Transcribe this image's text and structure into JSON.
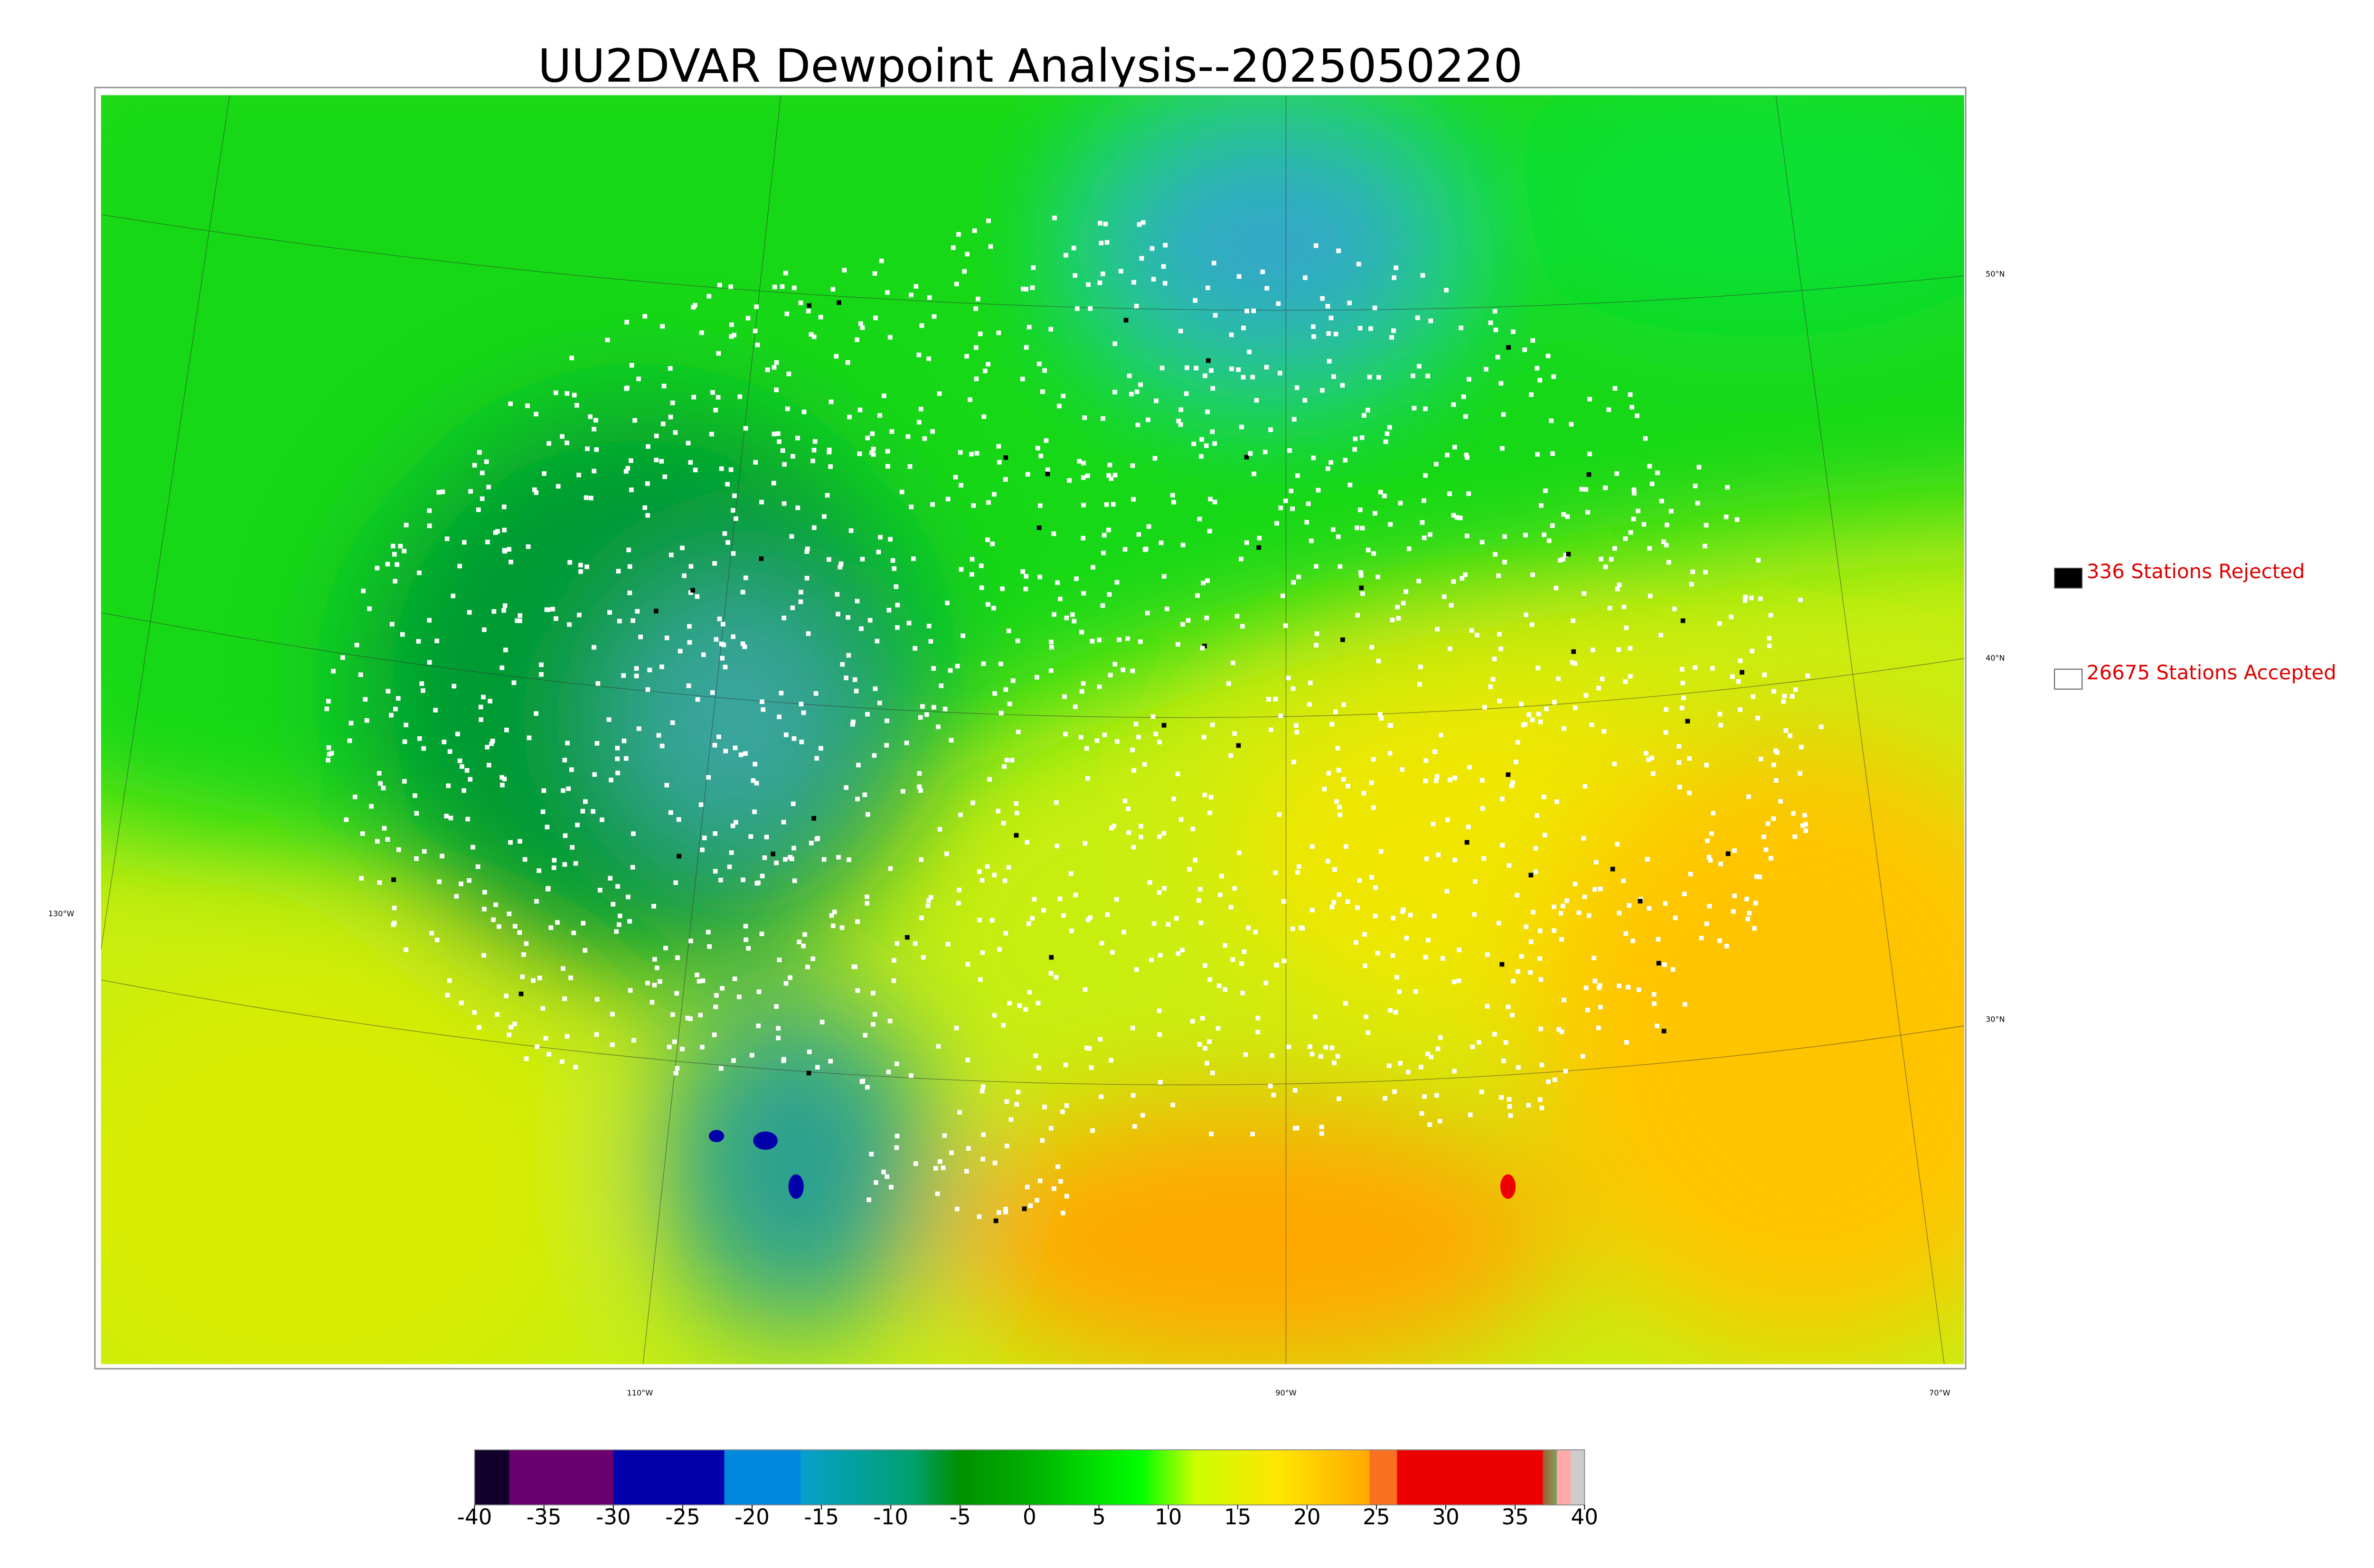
{
  "header": {
    "title": "UU2DVAR Dewpoint Analysis--2025050220"
  },
  "graticule": {
    "lon_labels": [
      "130°W",
      "110°W",
      "90°W",
      "70°W"
    ],
    "lat_labels": [
      "50°N",
      "40°N",
      "30°N"
    ]
  },
  "legend": [
    {
      "label": "336 Stations Rejected",
      "color": "#000000"
    },
    {
      "label": "26675 Stations Accepted",
      "color": "#ffffff"
    }
  ],
  "colorbar": {
    "ticks": [
      -40,
      -35,
      -30,
      -25,
      -20,
      -15,
      -10,
      -5,
      0,
      5,
      10,
      15,
      20,
      25,
      30,
      35,
      40
    ],
    "stops": [
      {
        "value": -40,
        "color": "#12002a"
      },
      {
        "value": -37.5,
        "color": "#12002a"
      },
      {
        "value": -37.5,
        "color": "#6a006f"
      },
      {
        "value": -30,
        "color": "#6a006f"
      },
      {
        "value": -30,
        "color": "#0000aa"
      },
      {
        "value": -22,
        "color": "#0000aa"
      },
      {
        "value": -22,
        "color": "#0088dd"
      },
      {
        "value": -16.5,
        "color": "#0088dd"
      },
      {
        "value": -16.5,
        "color": "#08a0cc"
      },
      {
        "value": -8.5,
        "color": "#00a070"
      },
      {
        "value": -5,
        "color": "#009000"
      },
      {
        "value": 0,
        "color": "#00b000"
      },
      {
        "value": 8,
        "color": "#00ff00"
      },
      {
        "value": 12,
        "color": "#ccff00"
      },
      {
        "value": 18,
        "color": "#ffe600"
      },
      {
        "value": 24.5,
        "color": "#ffa800"
      },
      {
        "value": 24.5,
        "color": "#f87020"
      },
      {
        "value": 26.5,
        "color": "#f87020"
      },
      {
        "value": 26.5,
        "color": "#ee0000"
      },
      {
        "value": 37,
        "color": "#ee0000"
      },
      {
        "value": 37,
        "color": "#a06030"
      },
      {
        "value": 38,
        "color": "#80a060"
      },
      {
        "value": 38,
        "color": "#ffaaaa"
      },
      {
        "value": 39,
        "color": "#ffaaaa"
      },
      {
        "value": 39,
        "color": "#cccccc"
      },
      {
        "value": 40,
        "color": "#cccccc"
      }
    ]
  }
}
